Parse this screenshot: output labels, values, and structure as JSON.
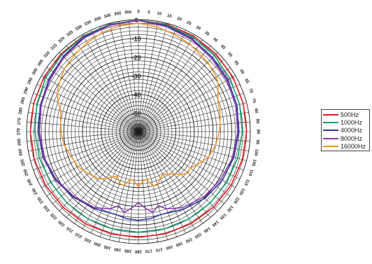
{
  "chart_data": {
    "type": "polar-line",
    "angle_ticks": [
      "0",
      "5",
      "10",
      "15",
      "20",
      "25",
      "30",
      "35",
      "40",
      "45",
      "50",
      "55",
      "60",
      "65",
      "70",
      "75",
      "80",
      "85",
      "90",
      "95",
      "100",
      "105",
      "110",
      "115",
      "120",
      "125",
      "130",
      "135",
      "140",
      "145",
      "150",
      "155",
      "160",
      "165",
      "170",
      "175",
      "180",
      "185",
      "190",
      "195",
      "200",
      "205",
      "210",
      "215",
      "220",
      "225",
      "230",
      "235",
      "240",
      "245",
      "250",
      "255",
      "260",
      "265",
      "270",
      "275",
      "280",
      "285",
      "290",
      "295",
      "300",
      "305",
      "310",
      "315",
      "320",
      "325",
      "330",
      "335",
      "340",
      "345",
      "350",
      "355"
    ],
    "radial_ticks": [
      "0",
      "-10",
      "-20",
      "-30",
      "-40",
      "-50"
    ],
    "rlim": [
      -60,
      0
    ],
    "grid": true,
    "legend_position": "right",
    "series": [
      {
        "name": "500Hz",
        "color": "#e3191c",
        "angles": [
          0,
          15,
          30,
          45,
          60,
          75,
          90,
          105,
          120,
          135,
          150,
          165,
          180,
          195,
          210,
          225,
          240,
          255,
          270,
          285,
          300,
          315,
          330,
          345
        ],
        "values": [
          -0.3,
          -0.5,
          -0.8,
          -1.2,
          -1.5,
          -1.8,
          -2.0,
          -2.3,
          -2.6,
          -2.9,
          -3.2,
          -3.4,
          -3.4,
          -3.3,
          -3.0,
          -2.8,
          -2.5,
          -2.2,
          -2.0,
          -1.8,
          -1.5,
          -1.2,
          -0.8,
          -0.5
        ]
      },
      {
        "name": "1000Hz",
        "color": "#179a6e",
        "angles": [
          0,
          15,
          30,
          45,
          60,
          75,
          90,
          105,
          120,
          135,
          150,
          165,
          180,
          195,
          210,
          225,
          240,
          255,
          270,
          285,
          300,
          315,
          330,
          345
        ],
        "values": [
          -0.3,
          -0.8,
          -1.5,
          -2.5,
          -3.2,
          -3.8,
          -4.3,
          -4.9,
          -5.4,
          -5.8,
          -6.0,
          -6.1,
          -6.1,
          -6.1,
          -6.0,
          -5.9,
          -5.6,
          -5.0,
          -4.5,
          -3.5,
          -2.5,
          -1.8,
          -1.0,
          -0.5
        ]
      },
      {
        "name": "4000Hz",
        "color": "#2a3798",
        "angles": [
          0,
          15,
          30,
          45,
          60,
          75,
          90,
          105,
          120,
          135,
          150,
          165,
          172,
          180,
          188,
          195,
          210,
          225,
          240,
          255,
          270,
          285,
          300,
          315,
          330,
          345
        ],
        "values": [
          -0.5,
          -1.3,
          -2.5,
          -3.8,
          -4.6,
          -5.3,
          -6.2,
          -7.0,
          -8.0,
          -9.5,
          -12.0,
          -14.0,
          -13.0,
          -12.5,
          -13.0,
          -14.0,
          -12.5,
          -10.5,
          -8.5,
          -7.0,
          -6.3,
          -5.5,
          -4.5,
          -3.0,
          -1.5,
          -0.8
        ]
      },
      {
        "name": "8000Hz",
        "color": "#8e39ad",
        "angles": [
          0,
          15,
          30,
          45,
          60,
          75,
          90,
          105,
          120,
          135,
          150,
          160,
          165,
          170,
          175,
          180,
          185,
          190,
          195,
          200,
          210,
          225,
          240,
          255,
          270,
          285,
          300,
          315,
          330,
          345
        ],
        "values": [
          -0.5,
          -1.8,
          -3.0,
          -4.5,
          -5.2,
          -6.0,
          -6.8,
          -7.5,
          -9.0,
          -10.5,
          -13.0,
          -16.0,
          -19.0,
          -16.0,
          -19.0,
          -22.0,
          -19.0,
          -16.0,
          -19.0,
          -16.0,
          -13.0,
          -11.0,
          -9.0,
          -7.5,
          -7.0,
          -6.0,
          -5.0,
          -3.5,
          -2.0,
          -1.0
        ]
      },
      {
        "name": "16000Hz",
        "color": "#f0952a",
        "angles": [
          0,
          10,
          20,
          30,
          45,
          55,
          60,
          65,
          70,
          75,
          80,
          90,
          100,
          110,
          120,
          125,
          130,
          135,
          140,
          150,
          155,
          160,
          165,
          170,
          175,
          180,
          185,
          190,
          195,
          200,
          205,
          210,
          215,
          220,
          230,
          240,
          250,
          260,
          270,
          280,
          285,
          290,
          295,
          300,
          310,
          320,
          330,
          340,
          350
        ],
        "values": [
          -2.0,
          -3.0,
          -4.5,
          -5.5,
          -7.5,
          -9.0,
          -10.5,
          -13.0,
          -14.5,
          -15.0,
          -15.5,
          -16.5,
          -18.0,
          -20.0,
          -24.0,
          -26.0,
          -25.5,
          -27.5,
          -30.5,
          -33.5,
          -32.5,
          -29.5,
          -30.0,
          -34.0,
          -33.5,
          -30.5,
          -33.5,
          -34.0,
          -30.0,
          -30.5,
          -33.5,
          -32.0,
          -29.5,
          -27.0,
          -25.0,
          -22.5,
          -21.5,
          -19.5,
          -18.5,
          -17.5,
          -17.0,
          -14.0,
          -12.0,
          -10.5,
          -8.0,
          -6.5,
          -5.0,
          -3.5,
          -2.5
        ]
      }
    ]
  }
}
